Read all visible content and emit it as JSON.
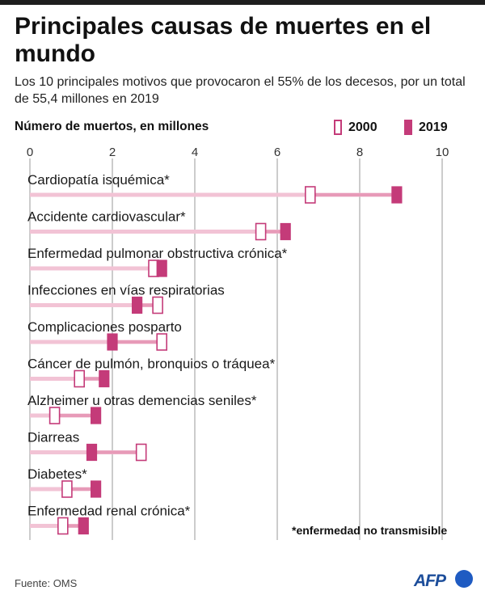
{
  "header": {
    "title": "Principales causas de muertes en el mundo",
    "subtitle": "Los 10 principales motivos que provocaron el 55% de los decesos, por un total de 55,4 millones en 2019"
  },
  "legend": {
    "axis_title": "Número de muertos, en millones",
    "items": [
      {
        "label": "2000",
        "style": "outline"
      },
      {
        "label": "2019",
        "style": "filled"
      }
    ]
  },
  "colors": {
    "accent": "#c43b79",
    "bar": "#f2c3d5",
    "grid": "#9a9a9a"
  },
  "chart_data": {
    "type": "dumbbell",
    "title": "Principales causas de muertes en el mundo",
    "xlabel": "Número de muertos, en millones",
    "xlim": [
      0,
      10
    ],
    "xticks": [
      0,
      2,
      4,
      6,
      8,
      10
    ],
    "tick_labels": [
      "0",
      "2",
      "4",
      "6",
      "8",
      "10"
    ],
    "series": [
      {
        "name": "2000",
        "values": [
          6.8,
          5.6,
          3.0,
          3.1,
          3.2,
          1.2,
          0.6,
          2.7,
          0.9,
          0.8
        ]
      },
      {
        "name": "2019",
        "values": [
          8.9,
          6.2,
          3.2,
          2.6,
          2.0,
          1.8,
          1.6,
          1.5,
          1.6,
          1.3
        ]
      }
    ],
    "categories": [
      "Cardiopatía isquémica*",
      "Accidente cardiovascular*",
      "Enfermedad pulmonar obstructiva crónica*",
      "Infecciones en vías respiratorias",
      "Complicaciones posparto",
      "Cáncer de pulmón, bronquios o tráquea*",
      "Alzheimer u otras demencias seniles*",
      "Diarreas",
      "Diabetes*",
      "Enfermedad renal crónica*"
    ],
    "grid": true,
    "legend_position": "top-right"
  },
  "footnote": "*enfermedad no transmisible",
  "source": "Fuente: OMS",
  "logo": "AFP"
}
